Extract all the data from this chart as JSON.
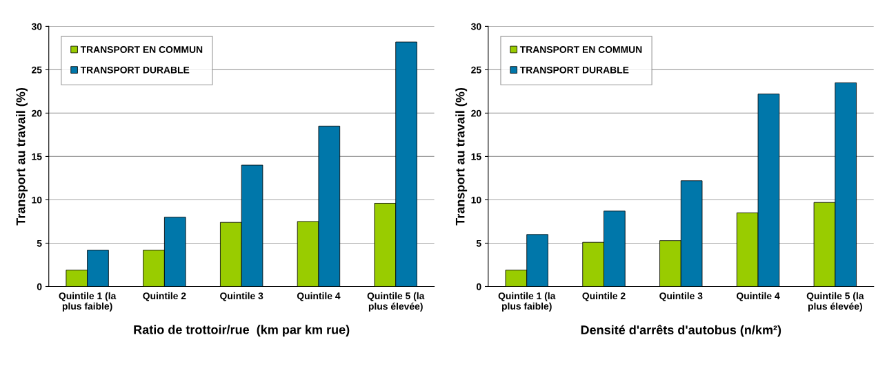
{
  "chart_data": [
    {
      "type": "bar",
      "xlabel": "Ratio de trottoir/rue  (km par km rue)",
      "ylabel": "Transport au travail (%)",
      "categories": [
        "Quintile 1 (la\nplus faible)",
        "Quintile 2",
        "Quintile 3",
        "Quintile 4",
        "Quintile 5 (la\nplus élevée)"
      ],
      "series": [
        {
          "name": "TRANSPORT EN COMMUN",
          "color": "#99cc00",
          "values": [
            1.9,
            4.2,
            7.4,
            7.5,
            9.6
          ]
        },
        {
          "name": "TRANSPORT DURABLE",
          "color": "#0077aa",
          "values": [
            4.2,
            8.0,
            14.0,
            18.5,
            28.2
          ]
        }
      ],
      "ylim": [
        0,
        30
      ],
      "yticks": [
        0,
        5,
        10,
        15,
        20,
        25,
        30
      ],
      "grid": "y",
      "legend": "top left"
    },
    {
      "type": "bar",
      "xlabel": "Densité d'arrêts d'autobus (n/km²)",
      "ylabel": "Transport au travail (%)",
      "categories": [
        "Quintile 1 (la\nplus faible)",
        "Quintile 2",
        "Quintile 3",
        "Quintile 4",
        "Quintile 5 (la\nplus élevée)"
      ],
      "series": [
        {
          "name": "TRANSPORT EN COMMUN",
          "color": "#99cc00",
          "values": [
            1.9,
            5.1,
            5.3,
            8.5,
            9.7
          ]
        },
        {
          "name": "TRANSPORT DURABLE",
          "color": "#0077aa",
          "values": [
            6.0,
            8.7,
            12.2,
            22.2,
            23.5
          ]
        }
      ],
      "ylim": [
        0,
        30
      ],
      "yticks": [
        0,
        5,
        10,
        15,
        20,
        25,
        30
      ],
      "grid": "y",
      "legend": "top left"
    }
  ]
}
